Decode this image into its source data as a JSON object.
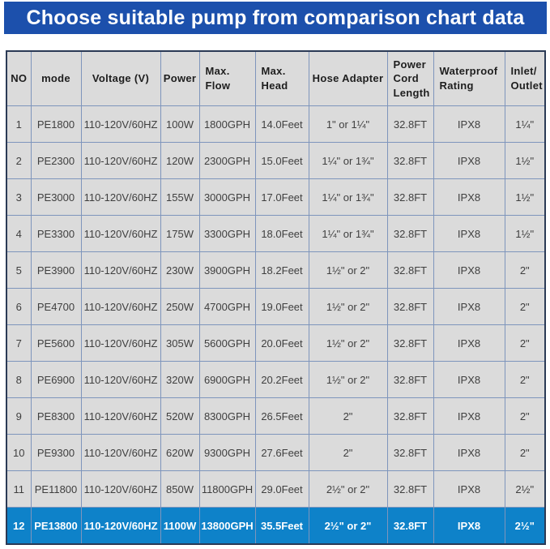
{
  "banner": {
    "title": "Choose suitable pump from comparison chart data"
  },
  "colors": {
    "banner_blue": "#1c50ac",
    "highlight_blue": "#0e82c9",
    "cell_gray": "#dbdbdb",
    "grid_line": "#7e95bc",
    "outer_border": "#2b3a55"
  },
  "chart_data": {
    "type": "table",
    "title": "Choose suitable pump from comparison chart data",
    "columns": [
      "NO",
      "mode",
      "Voltage (V)",
      "Power",
      "Max.\nFlow",
      "Max.\nHead",
      "Hose Adapter",
      "Power\nCord\nLength",
      "Waterproof\nRating",
      "Inlet/\nOutlet"
    ],
    "highlight_row_number": 12,
    "rows": [
      [
        "1",
        "PE1800",
        "110-120V/60HZ",
        "100W",
        "1800GPH",
        "14.0Feet",
        "1\" or 1¼\"",
        "32.8FT",
        "IPX8",
        "1¼\""
      ],
      [
        "2",
        "PE2300",
        "110-120V/60HZ",
        "120W",
        "2300GPH",
        "15.0Feet",
        "1¼\" or 1¾\"",
        "32.8FT",
        "IPX8",
        "1½\""
      ],
      [
        "3",
        "PE3000",
        "110-120V/60HZ",
        "155W",
        "3000GPH",
        "17.0Feet",
        "1¼\" or 1¾\"",
        "32.8FT",
        "IPX8",
        "1½\""
      ],
      [
        "4",
        "PE3300",
        "110-120V/60HZ",
        "175W",
        "3300GPH",
        "18.0Feet",
        "1¼\" or 1¾\"",
        "32.8FT",
        "IPX8",
        "1½\""
      ],
      [
        "5",
        "PE3900",
        "110-120V/60HZ",
        "230W",
        "3900GPH",
        "18.2Feet",
        "1½\" or 2\"",
        "32.8FT",
        "IPX8",
        "2\""
      ],
      [
        "6",
        "PE4700",
        "110-120V/60HZ",
        "250W",
        "4700GPH",
        "19.0Feet",
        "1½\" or 2\"",
        "32.8FT",
        "IPX8",
        "2\""
      ],
      [
        "7",
        "PE5600",
        "110-120V/60HZ",
        "305W",
        "5600GPH",
        "20.0Feet",
        "1½\" or 2\"",
        "32.8FT",
        "IPX8",
        "2\""
      ],
      [
        "8",
        "PE6900",
        "110-120V/60HZ",
        "320W",
        "6900GPH",
        "20.2Feet",
        "1½\" or 2\"",
        "32.8FT",
        "IPX8",
        "2\""
      ],
      [
        "9",
        "PE8300",
        "110-120V/60HZ",
        "520W",
        "8300GPH",
        "26.5Feet",
        "2\"",
        "32.8FT",
        "IPX8",
        "2\""
      ],
      [
        "10",
        "PE9300",
        "110-120V/60HZ",
        "620W",
        "9300GPH",
        "27.6Feet",
        "2\"",
        "32.8FT",
        "IPX8",
        "2\""
      ],
      [
        "11",
        "PE11800",
        "110-120V/60HZ",
        "850W",
        "11800GPH",
        "29.0Feet",
        "2½\" or 2\"",
        "32.8FT",
        "IPX8",
        "2½\""
      ],
      [
        "12",
        "PE13800",
        "110-120V/60HZ",
        "1100W",
        "13800GPH",
        "35.5Feet",
        "2½\" or 2\"",
        "32.8FT",
        "IPX8",
        "2½\""
      ]
    ]
  }
}
